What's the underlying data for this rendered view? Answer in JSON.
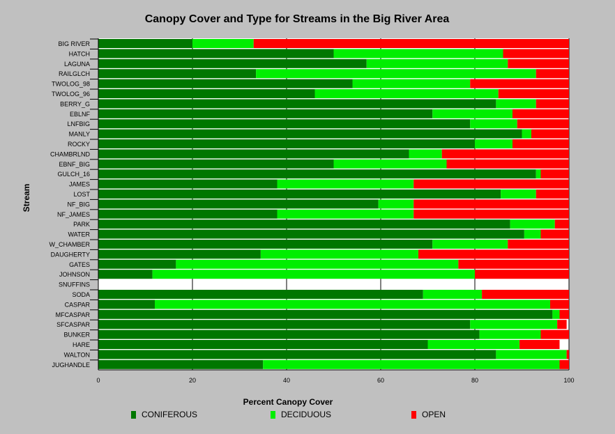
{
  "chart_data": {
    "type": "bar",
    "orientation": "horizontal",
    "stacked": true,
    "title": "Canopy Cover and Type for Streams in the Big River Area",
    "xlabel": "Percent Canopy Cover",
    "ylabel": "Stream",
    "xlim": [
      0,
      100
    ],
    "xticks": [
      "0",
      "20",
      "40",
      "60",
      "80",
      "100"
    ],
    "grid": true,
    "legend_position": "bottom",
    "categories": [
      "BIG RIVER",
      "HATCH",
      "LAGUNA",
      "RAILGLCH",
      "TWOLOG_98",
      "TWOLOG_96",
      "BERRY_G",
      "EBLNF",
      "LNFBIG",
      "MANLY",
      "ROCKY",
      "CHAMBRLND",
      "EBNF_BIG",
      "GULCH_16",
      "JAMES",
      "LOST",
      "NF_BIG",
      "NF_JAMES",
      "PARK",
      "WATER",
      "W_CHAMBER",
      "DAUGHERTY",
      "GATES",
      "JOHNSON",
      "SNUFFINS",
      "SODA",
      "CASPAR",
      "MFCASPAR",
      "SFCASPAR",
      "BUNKER",
      "HARE",
      "WALTON",
      "JUGHANDLE"
    ],
    "series": [
      {
        "name": "CONIFEROUS",
        "color": "#007700",
        "values": [
          20,
          50,
          57,
          33.5,
          54,
          46,
          84.5,
          71,
          79,
          90,
          80,
          66,
          50,
          93,
          38,
          85.5,
          59.5,
          38,
          87.5,
          90.5,
          71,
          34.5,
          16.5,
          11.5,
          0,
          69,
          12,
          96.5,
          79,
          81,
          70,
          84.5,
          35
        ]
      },
      {
        "name": "DECIDUOUS",
        "color": "#00ee00",
        "values": [
          13,
          36,
          30,
          59.5,
          25,
          39,
          8.5,
          17,
          10,
          2,
          8,
          7,
          24,
          1,
          29,
          7.5,
          7.5,
          29,
          9.5,
          3.5,
          16,
          33.5,
          60,
          68.5,
          0,
          12.5,
          84,
          1.5,
          18.5,
          13,
          19.5,
          15,
          63
        ]
      },
      {
        "name": "OPEN",
        "color": "#ff0000",
        "values": [
          67,
          14,
          13,
          7,
          21,
          15,
          7,
          12,
          11,
          8,
          12,
          27,
          26,
          6,
          33,
          7,
          33,
          33,
          3,
          6,
          13,
          32,
          23.5,
          20,
          0,
          18.5,
          4,
          2,
          2,
          6,
          8.5,
          0.5,
          2
        ]
      }
    ]
  }
}
